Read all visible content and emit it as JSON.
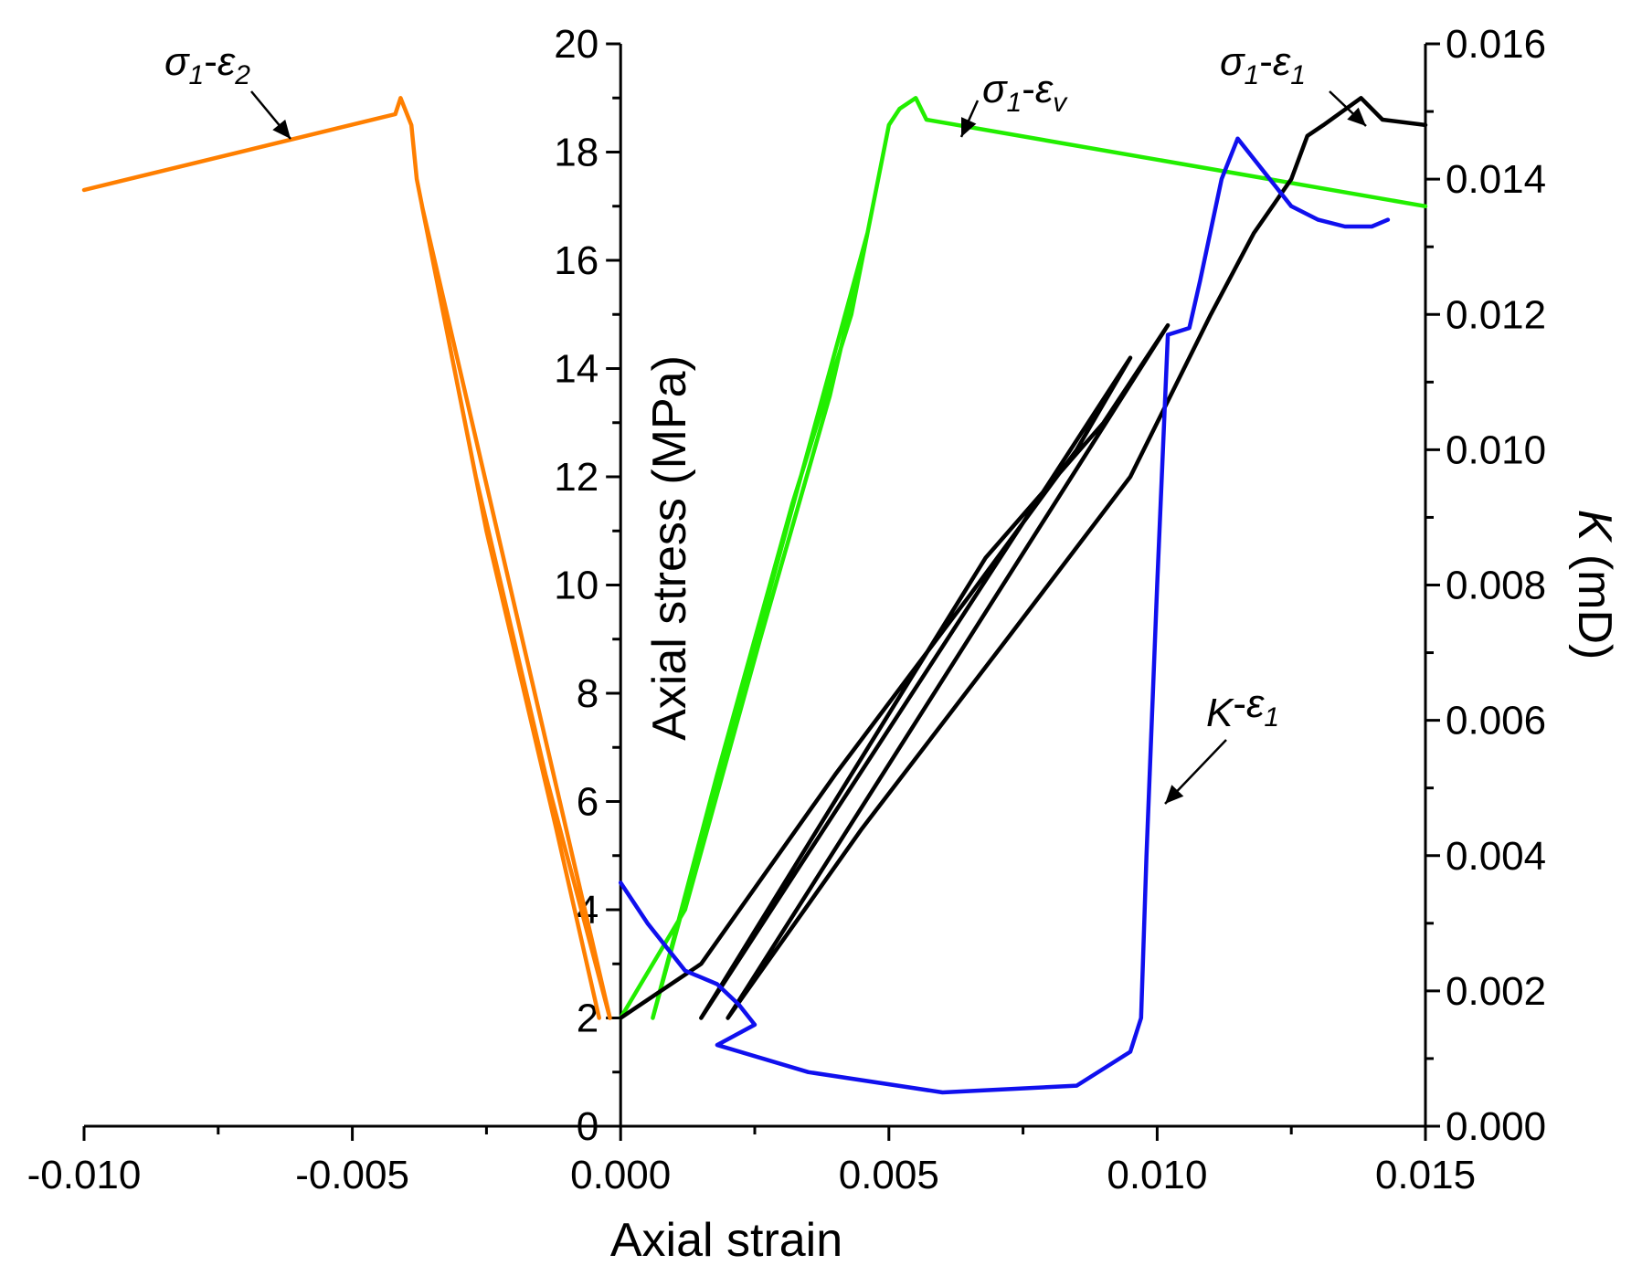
{
  "chart_data": {
    "type": "line",
    "title": "",
    "xlabel": "Axial strain",
    "ylabel": "Axial stress (MPa)",
    "y2label_italic": "K",
    "y2label_rest": " (mD)",
    "xlim": [
      -0.01,
      0.015
    ],
    "ylim": [
      0,
      20
    ],
    "y2lim": [
      0,
      0.016
    ],
    "x_ticks": [
      -0.01,
      -0.005,
      0.0,
      0.005,
      0.01,
      0.015
    ],
    "x_tick_labels": [
      "-0.010",
      "-0.005",
      "0.000",
      "0.005",
      "0.010",
      "0.015"
    ],
    "y_ticks": [
      0,
      2,
      4,
      6,
      8,
      10,
      12,
      14,
      16,
      18,
      20
    ],
    "y_tick_labels": [
      "0",
      "2",
      "4",
      "6",
      "8",
      "10",
      "12",
      "14",
      "16",
      "18",
      "20"
    ],
    "y2_ticks": [
      0,
      0.002,
      0.004,
      0.006,
      0.008,
      0.01,
      0.012,
      0.014,
      0.016
    ],
    "y2_tick_labels": [
      "0.000",
      "0.002",
      "0.004",
      "0.006",
      "0.008",
      "0.010",
      "0.012",
      "0.014",
      "0.016"
    ],
    "series": [
      {
        "name": "σ1-ε2",
        "axis": "left",
        "color": "#ff7f00",
        "x": [
          -0.0004,
          -0.0012,
          -0.0025,
          -0.0033,
          -0.0037,
          -0.0002,
          -0.0014,
          -0.0027,
          -0.0035,
          -0.0038,
          -0.0039,
          -0.0041,
          -0.0042,
          -0.01
        ],
        "y": [
          2.0,
          5.5,
          11.0,
          15.0,
          17.0,
          2.0,
          6.5,
          12.0,
          16.0,
          17.5,
          18.5,
          19.0,
          18.7,
          17.3
        ]
      },
      {
        "name": "σ1-εv",
        "axis": "left",
        "color": "#22ee00",
        "x": [
          0.0,
          0.0012,
          0.0026,
          0.0039,
          0.0046,
          0.0006,
          0.0018,
          0.0032,
          0.0043,
          0.0048,
          0.005,
          0.0052,
          0.0055,
          0.0057,
          0.015
        ],
        "y": [
          2.0,
          4.0,
          9.0,
          13.5,
          16.5,
          2.0,
          6.5,
          11.5,
          15.0,
          17.5,
          18.5,
          18.8,
          19.0,
          18.6,
          17.0
        ]
      },
      {
        "name": "σ1-ε1",
        "axis": "left",
        "color": "#000000",
        "x": [
          0.0,
          0.0015,
          0.004,
          0.0065,
          0.0085,
          0.0095,
          0.0015,
          0.0043,
          0.0068,
          0.009,
          0.0102,
          0.002,
          0.0045,
          0.0072,
          0.0095,
          0.011,
          0.0118,
          0.0125,
          0.0128,
          0.0131,
          0.0138,
          0.0142,
          0.015
        ],
        "y": [
          2.0,
          3.0,
          6.5,
          9.8,
          12.5,
          14.2,
          2.0,
          6.5,
          10.5,
          13.0,
          14.8,
          2.0,
          5.5,
          9.0,
          12.0,
          15.0,
          16.5,
          17.5,
          18.3,
          18.5,
          19.0,
          18.6,
          18.5
        ]
      },
      {
        "name": "K-ε1",
        "axis": "right",
        "color": "#1010ee",
        "x": [
          0.0,
          0.0005,
          0.0012,
          0.0018,
          0.0022,
          0.0025,
          0.0018,
          0.0035,
          0.006,
          0.0085,
          0.0095,
          0.0097,
          0.0098,
          0.01,
          0.0102,
          0.0106,
          0.0108,
          0.0112,
          0.0115,
          0.0125,
          0.013,
          0.0135,
          0.014,
          0.0143
        ],
        "y": [
          0.0036,
          0.003,
          0.0023,
          0.0021,
          0.0018,
          0.0015,
          0.0012,
          0.0008,
          0.0005,
          0.0006,
          0.0011,
          0.0016,
          0.004,
          0.008,
          0.0117,
          0.0118,
          0.0125,
          0.014,
          0.0146,
          0.0136,
          0.0134,
          0.0133,
          0.0133,
          0.0134
        ]
      }
    ],
    "annotations": [
      {
        "id": "e2",
        "sigma": "σ",
        "sub1": "1",
        "dash": "-",
        "eps": "ε",
        "sub2": "2"
      },
      {
        "id": "ev",
        "sigma": "σ",
        "sub1": "1",
        "dash": "-",
        "eps": "ε",
        "sub2": "v"
      },
      {
        "id": "e1",
        "sigma": "σ",
        "sub1": "1",
        "dash": "-",
        "eps": "ε",
        "sub2": "1"
      },
      {
        "id": "k",
        "sigma": "K",
        "sub1": "",
        "dash": "-",
        "eps": "ε",
        "sub2": "1"
      }
    ]
  }
}
